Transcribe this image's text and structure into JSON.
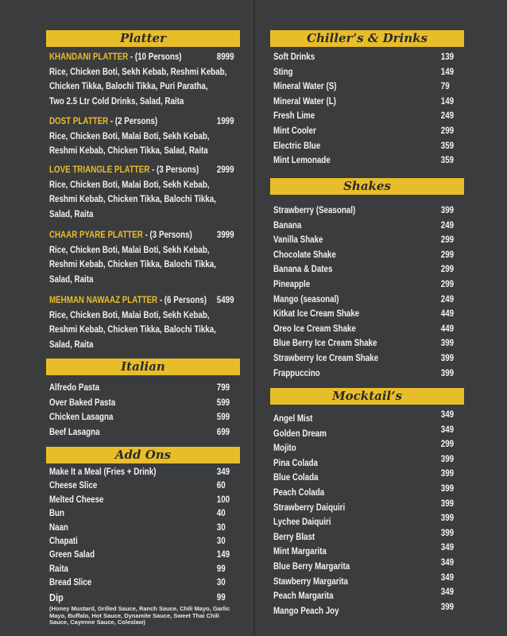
{
  "colors": {
    "background": "#3b3c3e",
    "accent": "#e8bd2a",
    "text": "#f2f2f2"
  },
  "platter": {
    "title": "Platter",
    "items": [
      {
        "name": "KHANDANI PLATTER",
        "persons": " - (10 Persons)",
        "price": "8999",
        "desc": [
          "Rice, Chicken Boti, Sekh Kebab, Reshmi Kebab,",
          "Chicken Tikka, Balochi Tikka, Puri Paratha,",
          "Two 2.5 Ltr Cold Drinks, Salad, Raita"
        ]
      },
      {
        "name": "DOST PLATTER",
        "persons": " - (2 Persons)",
        "price": "1999",
        "desc": [
          "Rice, Chicken Boti, Malai Boti, Sekh Kebab,",
          "Reshmi Kebab, Chicken Tikka, Salad, Raita"
        ]
      },
      {
        "name": "LOVE TRIANGLE PLATTER",
        "persons": " - (3 Persons)",
        "price": "2999",
        "desc": [
          "Rice, Chicken Boti, Malai Boti, Sekh Kebab,",
          "Reshmi Kebab, Chicken Tikka, Balochi Tikka,",
          "Salad, Raita"
        ]
      },
      {
        "name": "CHAAR PYARE PLATTER",
        "persons": " - (3 Persons)",
        "price": "3999",
        "desc": [
          "Rice, Chicken Boti, Malai Boti, Sekh Kebab,",
          "Reshmi Kebab, Chicken Tikka, Balochi Tikka,",
          "Salad, Raita"
        ]
      },
      {
        "name": "MEHMAN NAWAAZ PLATTER",
        "persons": " - (6 Persons)",
        "price": "5499",
        "desc": [
          "Rice, Chicken Boti, Malai Boti, Sekh Kebab,",
          "Reshmi Kebab, Chicken Tikka, Balochi Tikka,",
          "Salad, Raita"
        ]
      }
    ]
  },
  "italian": {
    "title": "Italian",
    "items": [
      [
        "Alfredo Pasta",
        "799"
      ],
      [
        "Over Baked Pasta",
        "599"
      ],
      [
        "Chicken Lasagna",
        "599"
      ],
      [
        "Beef Lasagna",
        "699"
      ]
    ]
  },
  "addons": {
    "title": "Add Ons",
    "items": [
      [
        "Make It a Meal (Fries + Drink)",
        "349"
      ],
      [
        "Cheese Slice",
        "60"
      ],
      [
        "Melted Cheese",
        "100"
      ],
      [
        "Bun",
        "40"
      ],
      [
        "Naan",
        "30"
      ],
      [
        "Chapati",
        "30"
      ],
      [
        "Green Salad",
        "149"
      ],
      [
        "Raita",
        "99"
      ],
      [
        "Bread Slice",
        "30"
      ]
    ],
    "dip": {
      "name": "Dip",
      "price": "99",
      "note1": "(Honey Mustard, Grilled Sauce, Ranch Sauce, Chili Mayo, Garlic Mayo, Buffalo,",
      "note2": "Hot Sauce, Dynamite Sauce, Sweet Thai Chili Sauce, Cayenne Sauce, Coleslaw)"
    }
  },
  "drinks": {
    "title": "Chiller’s & Drinks",
    "items": [
      [
        "Soft Drinks",
        "139"
      ],
      [
        "Sting",
        "149"
      ],
      [
        "Mineral Water (S)",
        "79"
      ],
      [
        "Mineral Water (L)",
        "149"
      ],
      [
        "Fresh Lime",
        "249"
      ],
      [
        "Mint Cooler",
        "299"
      ],
      [
        "Electric Blue",
        "359"
      ],
      [
        "Mint Lemonade",
        "359"
      ]
    ]
  },
  "shakes": {
    "title": "Shakes",
    "items": [
      [
        "Strawberry (Seasonal)",
        "399"
      ],
      [
        "Banana",
        "249"
      ],
      [
        "Vanilla Shake",
        "299"
      ],
      [
        "Chocolate Shake",
        "299"
      ],
      [
        "Banana & Dates",
        "299"
      ],
      [
        "Pineapple",
        "299"
      ],
      [
        "Mango (seasonal)",
        "249"
      ],
      [
        "Kitkat Ice Cream Shake",
        "449"
      ],
      [
        "Oreo Ice Cream Shake",
        "449"
      ],
      [
        "Blue Berry Ice Cream Shake",
        "399"
      ],
      [
        "Strawberry Ice Cream Shake",
        "399"
      ],
      [
        "Frappuccino",
        "399"
      ]
    ]
  },
  "mocktails": {
    "title": "Mocktail’s",
    "items": [
      [
        "Angel Mist",
        "349"
      ],
      [
        "Golden Dream",
        "349"
      ],
      [
        "Mojito",
        "299"
      ],
      [
        "Pina Colada",
        "399"
      ],
      [
        "Blue Colada",
        "399"
      ],
      [
        "Peach Colada",
        "399"
      ],
      [
        "Strawberry Daiquiri",
        "399"
      ],
      [
        "Lychee Daiquiri",
        "399"
      ],
      [
        "Berry Blast",
        "399"
      ],
      [
        "Mint Margarita",
        "349"
      ],
      [
        "Blue Berry Margarita",
        "349"
      ],
      [
        "Stawberry Margarita",
        "349"
      ],
      [
        "Peach Margarita",
        "349"
      ],
      [
        "Mango Peach Joy",
        "399"
      ]
    ]
  }
}
